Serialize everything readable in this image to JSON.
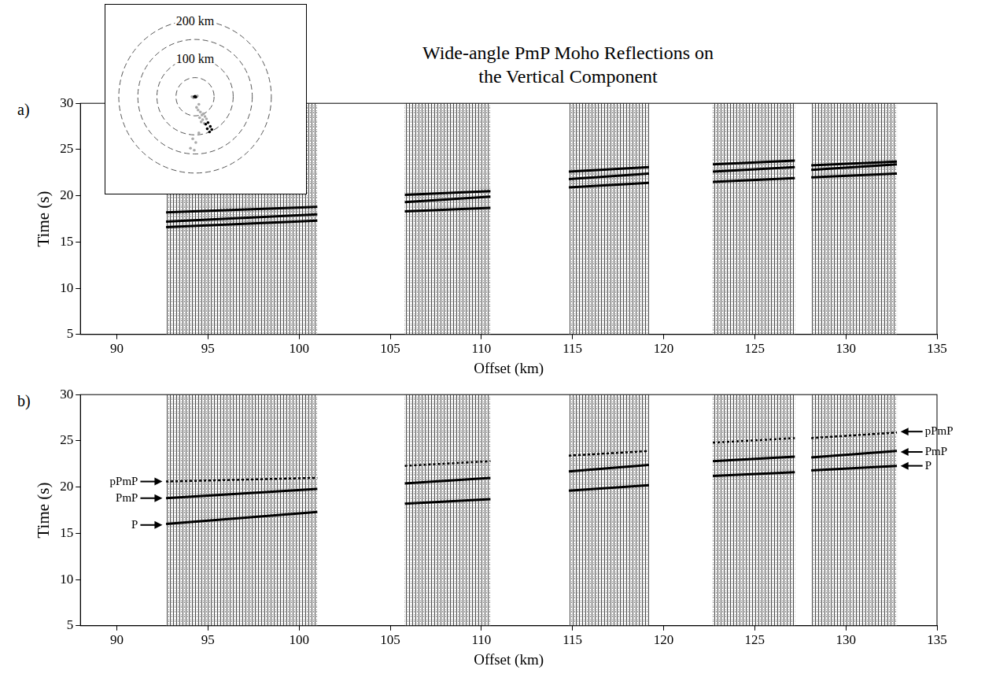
{
  "title": [
    "Wide-angle PmP Moho Reflections on",
    "the Vertical Component"
  ],
  "chart_data": [
    {
      "type": "line",
      "panel": "a)",
      "xlabel": "Offset (km)",
      "ylabel": "Time (s)",
      "xlim": [
        88,
        135
      ],
      "xticks": [
        90,
        95,
        100,
        105,
        110,
        115,
        120,
        125,
        130,
        135
      ],
      "ylim": [
        5,
        30
      ],
      "yticks": [
        5,
        10,
        15,
        20,
        25,
        30
      ],
      "grid": false,
      "gathers": [
        [
          92.7,
          101
        ],
        [
          105.8,
          110.5
        ],
        [
          114.8,
          119.2
        ],
        [
          122.7,
          127.2
        ],
        [
          128.1,
          132.8
        ]
      ],
      "x": [
        92.7,
        101,
        103.4,
        105.8,
        110.5,
        112.6,
        114.8,
        119.2,
        121,
        122.7,
        127.2,
        127.65,
        128.1,
        132.8
      ],
      "series": [
        {
          "color": "#000000",
          "line_style": "solid",
          "values": [
            16.6,
            17.3,
            null,
            18.3,
            18.7,
            null,
            20.9,
            21.4,
            null,
            21.5,
            21.9,
            null,
            22.0,
            22.4
          ]
        },
        {
          "color": "#000000",
          "line_style": "solid",
          "values": [
            17.2,
            18.0,
            null,
            19.3,
            19.9,
            null,
            21.8,
            22.4,
            null,
            22.6,
            23.1,
            null,
            22.8,
            23.4
          ]
        },
        {
          "color": "#000000",
          "line_style": "solid",
          "values": [
            18.2,
            18.8,
            null,
            20.1,
            20.5,
            null,
            22.6,
            23.1,
            null,
            23.4,
            23.8,
            null,
            23.3,
            23.7
          ]
        }
      ]
    },
    {
      "type": "line",
      "panel": "b)",
      "xlabel": "Offset (km)",
      "ylabel": "Time (s)",
      "xlim": [
        88,
        135
      ],
      "xticks": [
        90,
        95,
        100,
        105,
        110,
        115,
        120,
        125,
        130,
        135
      ],
      "ylim": [
        5,
        30
      ],
      "yticks": [
        5,
        10,
        15,
        20,
        25,
        30
      ],
      "grid": false,
      "gathers": [
        [
          92.7,
          101
        ],
        [
          105.8,
          110.5
        ],
        [
          114.8,
          119.2
        ],
        [
          122.7,
          127.2
        ],
        [
          128.1,
          132.8
        ]
      ],
      "x": [
        92.7,
        101,
        103.4,
        105.8,
        110.5,
        112.6,
        114.8,
        119.2,
        121,
        122.7,
        127.2,
        127.65,
        128.1,
        132.8
      ],
      "series": [
        {
          "color": "#000000",
          "line_style": "solid",
          "values": [
            16.0,
            17.3,
            null,
            18.2,
            18.7,
            null,
            19.6,
            20.2,
            null,
            21.2,
            21.6,
            null,
            21.8,
            22.3
          ]
        },
        {
          "color": "#000000",
          "line_style": "solid",
          "values": [
            18.8,
            19.8,
            null,
            20.4,
            21.0,
            null,
            21.7,
            22.4,
            null,
            22.8,
            23.3,
            null,
            23.2,
            23.9
          ]
        },
        {
          "color": "#000000",
          "line_style": "dotted",
          "values": [
            20.6,
            21.0,
            null,
            22.3,
            22.8,
            null,
            23.4,
            23.9,
            null,
            24.8,
            25.3,
            null,
            25.3,
            25.9
          ]
        }
      ],
      "annotations": [
        {
          "text": "pPmP",
          "x": 92.5,
          "y": 20.6
        },
        {
          "text": "PmP",
          "x": 92.5,
          "y": 18.8
        },
        {
          "text": "P",
          "x": 92.5,
          "y": 15.9
        },
        {
          "text": "pPmP",
          "x": 133,
          "y": 26.0
        },
        {
          "text": "PmP",
          "x": 133,
          "y": 23.8
        },
        {
          "text": "P",
          "x": 133,
          "y": 22.3
        }
      ]
    }
  ],
  "inset": {
    "xlim": [
      -235,
      291
    ],
    "ylim": [
      -254,
      241
    ],
    "rings": [
      50,
      100,
      150,
      200
    ],
    "ring_labels": [
      {
        "value": 200,
        "label": "200 km"
      },
      {
        "value": 100,
        "label": "100 km"
      }
    ],
    "series": [
      {
        "color": "#aaaaaa",
        "x": [
          -8,
          6,
          -4,
          10,
          4,
          8,
          14,
          18,
          22,
          12,
          26,
          20,
          30,
          16,
          24,
          -6,
          2,
          10,
          -12,
          -2
        ],
        "y": [
          0,
          2,
          -3,
          -20,
          -28,
          -35,
          -40,
          -48,
          -45,
          -55,
          -52,
          -60,
          -58,
          -66,
          -70,
          -110,
          -120,
          -95,
          -135,
          -140
        ]
      },
      {
        "color": "#000000",
        "x": [
          -2,
          0,
          2,
          28,
          34,
          40,
          32,
          44,
          38
        ],
        "y": [
          0,
          1,
          -1,
          -72,
          -68,
          -78,
          -84,
          -86,
          -92
        ]
      }
    ]
  }
}
